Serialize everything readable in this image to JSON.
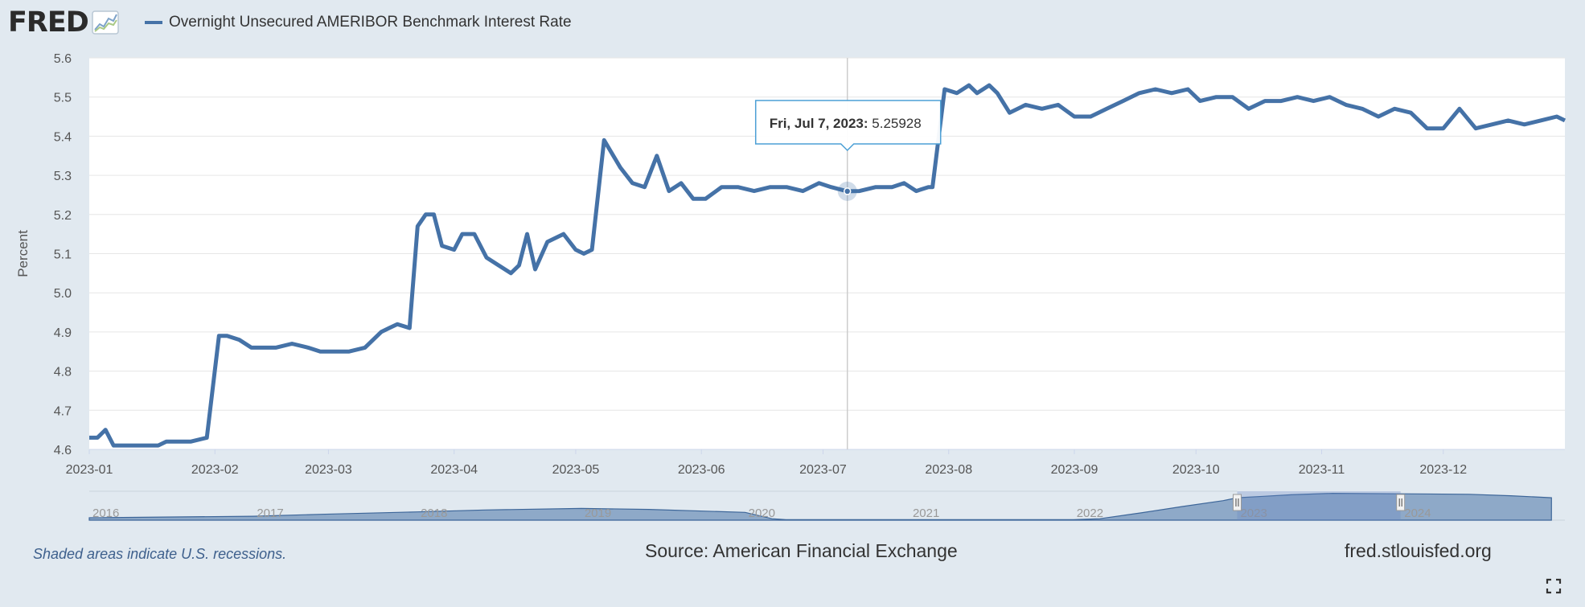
{
  "header": {
    "logo_text": "FRED",
    "logo_icon": "line-chart-icon",
    "legend_label": "Overnight Unsecured AMERIBOR Benchmark Interest Rate"
  },
  "colors": {
    "series": "#4572a7",
    "plot_bg": "#ffffff",
    "page_bg": "#e1e9f0",
    "navigator_fill": "#4a74a8",
    "tooltip_border": "#4b9fd5"
  },
  "tooltip": {
    "date": "Fri, Jul 7, 2023:",
    "value": "5.25928"
  },
  "footer": {
    "recession_note": "Shaded areas indicate U.S. recessions.",
    "source": "Source: American Financial Exchange",
    "site": "fred.stlouisfed.org",
    "fullscreen_icon": "fullscreen-icon"
  },
  "chart_data": {
    "type": "line",
    "title": "Overnight Unsecured AMERIBOR Benchmark Interest Rate",
    "xlabel": "",
    "ylabel": "Percent",
    "ylim": [
      4.6,
      5.6
    ],
    "yticks": [
      "4.6",
      "4.7",
      "4.8",
      "4.9",
      "5.0",
      "5.1",
      "5.2",
      "5.3",
      "5.4",
      "5.5",
      "5.6"
    ],
    "xlim": [
      "2023-01-01",
      "2023-12-31"
    ],
    "xticks": [
      "2023-01",
      "2023-02",
      "2023-03",
      "2023-04",
      "2023-05",
      "2023-06",
      "2023-07",
      "2023-08",
      "2023-09",
      "2023-10",
      "2023-11",
      "2023-12"
    ],
    "grid": true,
    "series": [
      {
        "name": "Overnight Unsecured AMERIBOR Benchmark Interest Rate",
        "x": [
          "2023-01-01",
          "2023-01-03",
          "2023-01-05",
          "2023-01-07",
          "2023-01-09",
          "2023-01-12",
          "2023-01-14",
          "2023-01-16",
          "2023-01-18",
          "2023-01-20",
          "2023-01-23",
          "2023-01-26",
          "2023-01-30",
          "2023-02-02",
          "2023-02-04",
          "2023-02-07",
          "2023-02-10",
          "2023-02-13",
          "2023-02-16",
          "2023-02-20",
          "2023-02-24",
          "2023-02-27",
          "2023-03-02",
          "2023-03-06",
          "2023-03-10",
          "2023-03-14",
          "2023-03-16",
          "2023-03-18",
          "2023-03-21",
          "2023-03-23",
          "2023-03-25",
          "2023-03-27",
          "2023-03-29",
          "2023-04-01",
          "2023-04-03",
          "2023-04-06",
          "2023-04-09",
          "2023-04-12",
          "2023-04-15",
          "2023-04-17",
          "2023-04-19",
          "2023-04-21",
          "2023-04-24",
          "2023-04-26",
          "2023-04-28",
          "2023-05-01",
          "2023-05-03",
          "2023-05-05",
          "2023-05-08",
          "2023-05-12",
          "2023-05-15",
          "2023-05-18",
          "2023-05-21",
          "2023-05-24",
          "2023-05-27",
          "2023-05-30",
          "2023-06-02",
          "2023-06-06",
          "2023-06-10",
          "2023-06-14",
          "2023-06-18",
          "2023-06-22",
          "2023-06-26",
          "2023-06-30",
          "2023-07-03",
          "2023-07-07",
          "2023-07-10",
          "2023-07-14",
          "2023-07-18",
          "2023-07-21",
          "2023-07-24",
          "2023-07-27",
          "2023-07-28",
          "2023-07-31",
          "2023-08-03",
          "2023-08-06",
          "2023-08-08",
          "2023-08-11",
          "2023-08-13",
          "2023-08-16",
          "2023-08-20",
          "2023-08-24",
          "2023-08-28",
          "2023-09-01",
          "2023-09-05",
          "2023-09-09",
          "2023-09-13",
          "2023-09-17",
          "2023-09-21",
          "2023-09-25",
          "2023-09-29",
          "2023-10-02",
          "2023-10-06",
          "2023-10-10",
          "2023-10-14",
          "2023-10-18",
          "2023-10-22",
          "2023-10-26",
          "2023-10-30",
          "2023-11-03",
          "2023-11-07",
          "2023-11-11",
          "2023-11-15",
          "2023-11-19",
          "2023-11-23",
          "2023-11-27",
          "2023-12-01",
          "2023-12-05",
          "2023-12-09",
          "2023-12-13",
          "2023-12-17",
          "2023-12-21",
          "2023-12-25",
          "2023-12-29",
          "2023-12-31"
        ],
        "values": [
          4.63,
          4.63,
          4.65,
          4.61,
          4.61,
          4.61,
          4.61,
          4.61,
          4.61,
          4.62,
          4.62,
          4.62,
          4.63,
          4.89,
          4.89,
          4.88,
          4.86,
          4.86,
          4.86,
          4.87,
          4.86,
          4.85,
          4.85,
          4.85,
          4.86,
          4.9,
          4.91,
          4.92,
          4.91,
          5.17,
          5.2,
          5.2,
          5.12,
          5.11,
          5.15,
          5.15,
          5.09,
          5.07,
          5.05,
          5.07,
          5.15,
          5.06,
          5.13,
          5.14,
          5.15,
          5.11,
          5.1,
          5.11,
          5.39,
          5.32,
          5.28,
          5.27,
          5.35,
          5.26,
          5.28,
          5.24,
          5.24,
          5.27,
          5.27,
          5.26,
          5.27,
          5.27,
          5.26,
          5.28,
          5.27,
          5.25928,
          5.26,
          5.27,
          5.27,
          5.28,
          5.26,
          5.27,
          5.27,
          5.52,
          5.51,
          5.53,
          5.51,
          5.53,
          5.51,
          5.46,
          5.48,
          5.47,
          5.48,
          5.45,
          5.45,
          5.47,
          5.49,
          5.51,
          5.52,
          5.51,
          5.52,
          5.49,
          5.5,
          5.5,
          5.47,
          5.49,
          5.49,
          5.5,
          5.49,
          5.5,
          5.48,
          5.47,
          5.45,
          5.47,
          5.46,
          5.42,
          5.42,
          5.47,
          5.42,
          5.43,
          5.44,
          5.43,
          5.44,
          5.45,
          5.44
        ]
      }
    ],
    "highlight": {
      "date": "2023-07-07",
      "value": 5.25928
    },
    "navigator": {
      "labels": [
        "2016",
        "2017",
        "2018",
        "2019",
        "2020",
        "2021",
        "2022",
        "2023",
        "2024"
      ],
      "range_start": "2016-01-01",
      "range_end": "2024-12-31",
      "selection": [
        "2023-01-01",
        "2023-12-31"
      ],
      "profile_x": [
        "2016-01",
        "2017-01",
        "2017-06",
        "2018-01",
        "2018-06",
        "2019-01",
        "2019-06",
        "2020-01",
        "2020-03",
        "2020-04",
        "2021-01",
        "2022-01",
        "2022-03",
        "2022-06",
        "2022-09",
        "2022-12",
        "2023-01",
        "2023-03",
        "2023-05",
        "2023-08",
        "2024-01",
        "2024-06",
        "2024-09",
        "2024-12"
      ],
      "profile_values": [
        0.5,
        0.8,
        1.2,
        1.7,
        2.1,
        2.4,
        2.2,
        1.6,
        0.3,
        0.1,
        0.1,
        0.1,
        0.3,
        1.5,
        2.8,
        4.0,
        4.6,
        4.9,
        5.2,
        5.5,
        5.4,
        5.3,
        5.0,
        4.6
      ]
    }
  }
}
